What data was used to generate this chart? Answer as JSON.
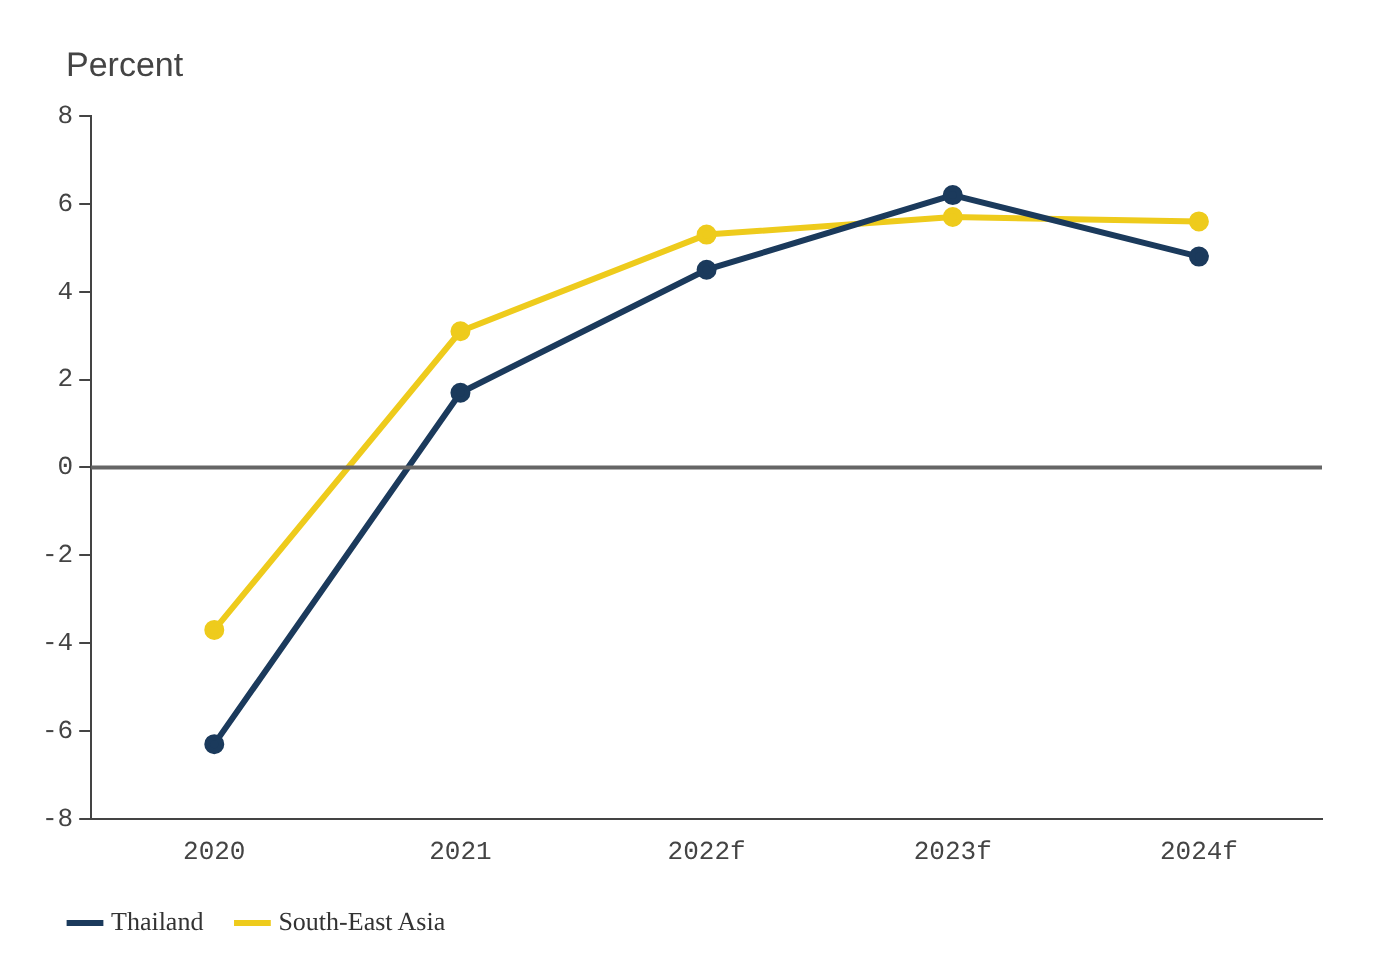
{
  "chart_data": {
    "type": "line",
    "ylabel": "Percent",
    "categories": [
      "2020",
      "2021",
      "2022f",
      "2023f",
      "2024f"
    ],
    "series": [
      {
        "name": "Thailand",
        "color": "#1b3a5c",
        "values": [
          -6.3,
          1.7,
          4.5,
          6.2,
          4.8
        ]
      },
      {
        "name": "South-East Asia",
        "color": "#eecb1c",
        "values": [
          -3.7,
          3.1,
          5.3,
          5.7,
          5.6
        ]
      }
    ],
    "ylim": [
      -8,
      8
    ],
    "yticks": [
      -8,
      -6,
      -4,
      -2,
      0,
      2,
      4,
      6,
      8
    ],
    "grid": false,
    "legend": "bottom left",
    "marker": "circle",
    "line_style": "solid",
    "ref_lines": [
      {
        "axis": "y",
        "value": 0,
        "color": "#666666"
      }
    ]
  }
}
